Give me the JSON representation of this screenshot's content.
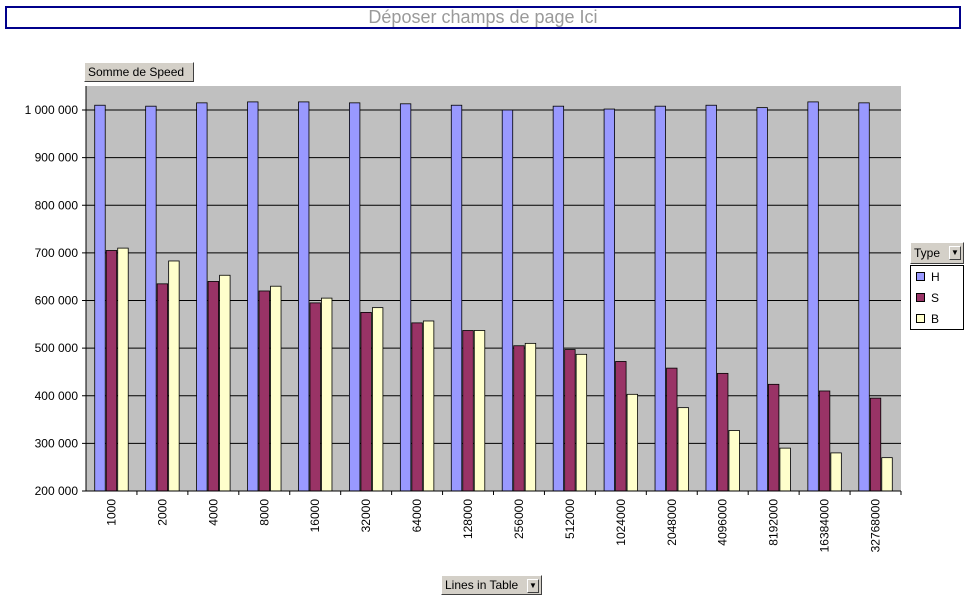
{
  "page_field": {
    "label": "Déposer champs de page Ici"
  },
  "data_field": {
    "label": "Somme de Speed"
  },
  "series_field": {
    "label": "Type"
  },
  "category_field": {
    "label": "Lines in Table"
  },
  "legend": {
    "items": [
      {
        "label": "H",
        "color": "#9999ff"
      },
      {
        "label": "S",
        "color": "#993366"
      },
      {
        "label": "B",
        "color": "#ffffcc"
      }
    ]
  },
  "colors": {
    "plot_background": "#c0c0c0",
    "gridline": "#000000"
  },
  "chart_data": {
    "type": "bar",
    "categories": [
      "1000",
      "2000",
      "4000",
      "8000",
      "16000",
      "32000",
      "64000",
      "128000",
      "256000",
      "512000",
      "1024000",
      "2048000",
      "4096000",
      "8192000",
      "16384000",
      "32768000"
    ],
    "series": [
      {
        "name": "H",
        "values": [
          1010000,
          1008000,
          1015000,
          1017000,
          1017000,
          1015000,
          1013000,
          1010000,
          1000000,
          1008000,
          1002000,
          1008000,
          1010000,
          1005000,
          1017000,
          1015000
        ]
      },
      {
        "name": "S",
        "values": [
          705000,
          635000,
          640000,
          620000,
          595000,
          575000,
          553000,
          537000,
          505000,
          497000,
          472000,
          458000,
          447000,
          424000,
          410000,
          395000
        ]
      },
      {
        "name": "B",
        "values": [
          710000,
          683000,
          653000,
          630000,
          605000,
          585000,
          557000,
          537000,
          510000,
          487000,
          403000,
          375000,
          327000,
          290000,
          280000,
          270000
        ]
      }
    ],
    "ylim": [
      200000,
      1000000
    ],
    "yticks": [
      "200 000",
      "300 000",
      "400 000",
      "500 000",
      "600 000",
      "700 000",
      "800 000",
      "900 000",
      "1 000 000"
    ],
    "grid": true,
    "legend_position": "right"
  }
}
